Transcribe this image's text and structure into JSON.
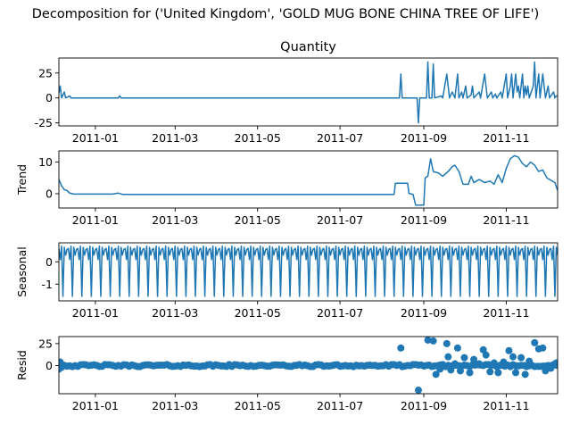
{
  "chart_data": {
    "type": "line",
    "title": "Decomposition for ('United Kingdom', 'GOLD MUG BONE CHINA TREE OF LIFE')",
    "x_tick_labels": [
      "2011-01",
      "2011-03",
      "2011-05",
      "2011-07",
      "2011-09",
      "2011-11"
    ],
    "x_tick_dates": [
      "2011-01-01",
      "2011-03-01",
      "2011-05-01",
      "2011-07-01",
      "2011-09-01",
      "2011-11-01"
    ],
    "x_range": [
      "2010-12-05",
      "2011-12-09"
    ],
    "line_color": "#1f77b4",
    "panels": [
      {
        "name": "Quantity",
        "title": "Quantity",
        "ylabel": "",
        "ylim": [
          -28,
          40
        ],
        "yticks": [
          -25,
          0,
          25
        ],
        "style": "line",
        "series": [
          {
            "x": "2010-12-05",
            "y": 5
          },
          {
            "x": "2010-12-06",
            "y": 12
          },
          {
            "x": "2010-12-07",
            "y": 0
          },
          {
            "x": "2010-12-09",
            "y": 6
          },
          {
            "x": "2010-12-10",
            "y": 0
          },
          {
            "x": "2010-12-13",
            "y": 2
          },
          {
            "x": "2010-12-14",
            "y": 0
          },
          {
            "x": "2011-01-18",
            "y": 0
          },
          {
            "x": "2011-01-19",
            "y": 2
          },
          {
            "x": "2011-01-20",
            "y": 0
          },
          {
            "x": "2011-08-14",
            "y": 0
          },
          {
            "x": "2011-08-15",
            "y": 24
          },
          {
            "x": "2011-08-16",
            "y": 0
          },
          {
            "x": "2011-08-27",
            "y": 0
          },
          {
            "x": "2011-08-28",
            "y": -25
          },
          {
            "x": "2011-08-29",
            "y": 0
          },
          {
            "x": "2011-09-03",
            "y": 0
          },
          {
            "x": "2011-09-04",
            "y": 36
          },
          {
            "x": "2011-09-05",
            "y": 0
          },
          {
            "x": "2011-09-07",
            "y": 0
          },
          {
            "x": "2011-09-08",
            "y": 34
          },
          {
            "x": "2011-09-09",
            "y": 0
          },
          {
            "x": "2011-09-14",
            "y": 2
          },
          {
            "x": "2011-09-15",
            "y": 0
          },
          {
            "x": "2011-09-18",
            "y": 24
          },
          {
            "x": "2011-09-19",
            "y": 12
          },
          {
            "x": "2011-09-20",
            "y": 0
          },
          {
            "x": "2011-09-22",
            "y": 6
          },
          {
            "x": "2011-09-24",
            "y": 0
          },
          {
            "x": "2011-09-26",
            "y": 24
          },
          {
            "x": "2011-09-27",
            "y": 0
          },
          {
            "x": "2011-09-29",
            "y": 6
          },
          {
            "x": "2011-09-30",
            "y": 0
          },
          {
            "x": "2011-10-02",
            "y": 12
          },
          {
            "x": "2011-10-03",
            "y": 0
          },
          {
            "x": "2011-10-06",
            "y": 3
          },
          {
            "x": "2011-10-07",
            "y": 12
          },
          {
            "x": "2011-10-08",
            "y": 0
          },
          {
            "x": "2011-10-12",
            "y": 6
          },
          {
            "x": "2011-10-13",
            "y": 0
          },
          {
            "x": "2011-10-16",
            "y": 24
          },
          {
            "x": "2011-10-17",
            "y": 12
          },
          {
            "x": "2011-10-18",
            "y": 0
          },
          {
            "x": "2011-10-21",
            "y": 6
          },
          {
            "x": "2011-10-22",
            "y": 0
          },
          {
            "x": "2011-10-24",
            "y": 4
          },
          {
            "x": "2011-10-25",
            "y": 0
          },
          {
            "x": "2011-10-28",
            "y": 6
          },
          {
            "x": "2011-10-29",
            "y": 0
          },
          {
            "x": "2011-11-01",
            "y": 24
          },
          {
            "x": "2011-11-02",
            "y": 0
          },
          {
            "x": "2011-11-04",
            "y": 12
          },
          {
            "x": "2011-11-05",
            "y": 24
          },
          {
            "x": "2011-11-06",
            "y": 0
          },
          {
            "x": "2011-11-08",
            "y": 24
          },
          {
            "x": "2011-11-09",
            "y": 6
          },
          {
            "x": "2011-11-10",
            "y": 12
          },
          {
            "x": "2011-11-11",
            "y": 0
          },
          {
            "x": "2011-11-13",
            "y": 24
          },
          {
            "x": "2011-11-14",
            "y": 0
          },
          {
            "x": "2011-11-15",
            "y": 12
          },
          {
            "x": "2011-11-16",
            "y": 3
          },
          {
            "x": "2011-11-17",
            "y": 12
          },
          {
            "x": "2011-11-18",
            "y": 0
          },
          {
            "x": "2011-11-21",
            "y": 12
          },
          {
            "x": "2011-11-22",
            "y": 36
          },
          {
            "x": "2011-11-23",
            "y": 0
          },
          {
            "x": "2011-11-25",
            "y": 24
          },
          {
            "x": "2011-11-26",
            "y": 0
          },
          {
            "x": "2011-11-28",
            "y": 24
          },
          {
            "x": "2011-11-29",
            "y": 12
          },
          {
            "x": "2011-11-30",
            "y": 0
          },
          {
            "x": "2011-12-02",
            "y": 12
          },
          {
            "x": "2011-12-03",
            "y": 0
          },
          {
            "x": "2011-12-06",
            "y": 6
          },
          {
            "x": "2011-12-07",
            "y": 0
          },
          {
            "x": "2011-12-08",
            "y": 2
          },
          {
            "x": "2011-12-09",
            "y": 2
          }
        ]
      },
      {
        "name": "Trend",
        "title": "",
        "ylabel": "Trend",
        "ylim": [
          -4.5,
          13.5
        ],
        "yticks": [
          0,
          10
        ],
        "style": "line",
        "series": [
          {
            "x": "2010-12-05",
            "y": 4.5
          },
          {
            "x": "2010-12-07",
            "y": 2.5
          },
          {
            "x": "2010-12-09",
            "y": 1.3
          },
          {
            "x": "2010-12-11",
            "y": 1.0
          },
          {
            "x": "2010-12-13",
            "y": 0.2
          },
          {
            "x": "2010-12-16",
            "y": -0.1
          },
          {
            "x": "2011-01-14",
            "y": -0.1
          },
          {
            "x": "2011-01-18",
            "y": 0.2
          },
          {
            "x": "2011-01-21",
            "y": -0.2
          },
          {
            "x": "2011-08-10",
            "y": -0.2
          },
          {
            "x": "2011-08-11",
            "y": 3.3
          },
          {
            "x": "2011-08-20",
            "y": 3.3
          },
          {
            "x": "2011-08-21",
            "y": 0.1
          },
          {
            "x": "2011-08-24",
            "y": -0.2
          },
          {
            "x": "2011-08-26",
            "y": -3.6
          },
          {
            "x": "2011-09-01",
            "y": -3.6
          },
          {
            "x": "2011-09-02",
            "y": 5.0
          },
          {
            "x": "2011-09-04",
            "y": 5.5
          },
          {
            "x": "2011-09-06",
            "y": 11.0
          },
          {
            "x": "2011-09-08",
            "y": 7.0
          },
          {
            "x": "2011-09-12",
            "y": 6.5
          },
          {
            "x": "2011-09-15",
            "y": 5.5
          },
          {
            "x": "2011-09-19",
            "y": 7.0
          },
          {
            "x": "2011-09-22",
            "y": 8.5
          },
          {
            "x": "2011-09-24",
            "y": 9.0
          },
          {
            "x": "2011-09-27",
            "y": 7.0
          },
          {
            "x": "2011-09-30",
            "y": 3.0
          },
          {
            "x": "2011-10-04",
            "y": 3.0
          },
          {
            "x": "2011-10-06",
            "y": 5.5
          },
          {
            "x": "2011-10-08",
            "y": 3.5
          },
          {
            "x": "2011-10-12",
            "y": 4.5
          },
          {
            "x": "2011-10-16",
            "y": 3.5
          },
          {
            "x": "2011-10-20",
            "y": 4.0
          },
          {
            "x": "2011-10-23",
            "y": 3.0
          },
          {
            "x": "2011-10-26",
            "y": 6.0
          },
          {
            "x": "2011-10-29",
            "y": 3.5
          },
          {
            "x": "2011-11-01",
            "y": 8.0
          },
          {
            "x": "2011-11-04",
            "y": 11.0
          },
          {
            "x": "2011-11-07",
            "y": 12.0
          },
          {
            "x": "2011-11-10",
            "y": 11.5
          },
          {
            "x": "2011-11-13",
            "y": 9.5
          },
          {
            "x": "2011-11-16",
            "y": 8.5
          },
          {
            "x": "2011-11-19",
            "y": 10.0
          },
          {
            "x": "2011-11-22",
            "y": 9.0
          },
          {
            "x": "2011-11-25",
            "y": 7.0
          },
          {
            "x": "2011-11-28",
            "y": 7.5
          },
          {
            "x": "2011-12-01",
            "y": 5.0
          },
          {
            "x": "2011-12-05",
            "y": 4.0
          },
          {
            "x": "2011-12-07",
            "y": 3.5
          },
          {
            "x": "2011-12-09",
            "y": 1.0
          }
        ]
      },
      {
        "name": "Seasonal",
        "title": "",
        "ylabel": "Seasonal",
        "ylim": [
          -1.75,
          0.85
        ],
        "yticks": [
          -1,
          0
        ],
        "style": "seasonal",
        "period_days": 7,
        "pattern": [
          0.6,
          0.1,
          0.7,
          -1.55,
          0.65,
          0.3,
          0.55
        ],
        "start": "2010-12-05"
      },
      {
        "name": "Resid",
        "title": "",
        "ylabel": "Resid",
        "ylim": [
          -32,
          33
        ],
        "yticks": [
          0,
          25
        ],
        "style": "scatter",
        "baseline": 0,
        "baseline_points_every_days": 2,
        "baseline_noise": 1.2,
        "series": [
          {
            "x": "2010-12-05",
            "y": -4
          },
          {
            "x": "2010-12-06",
            "y": 4
          },
          {
            "x": "2010-12-07",
            "y": -2
          },
          {
            "x": "2011-08-15",
            "y": 20
          },
          {
            "x": "2011-08-28",
            "y": -28
          },
          {
            "x": "2011-09-04",
            "y": 29
          },
          {
            "x": "2011-09-08",
            "y": 28
          },
          {
            "x": "2011-09-10",
            "y": -10
          },
          {
            "x": "2011-09-13",
            "y": -4
          },
          {
            "x": "2011-09-18",
            "y": 25
          },
          {
            "x": "2011-09-19",
            "y": 10
          },
          {
            "x": "2011-09-21",
            "y": -5
          },
          {
            "x": "2011-09-24",
            "y": 2
          },
          {
            "x": "2011-09-26",
            "y": 20
          },
          {
            "x": "2011-09-28",
            "y": -6
          },
          {
            "x": "2011-10-01",
            "y": 9
          },
          {
            "x": "2011-10-05",
            "y": -8
          },
          {
            "x": "2011-10-08",
            "y": 7
          },
          {
            "x": "2011-10-12",
            "y": 2
          },
          {
            "x": "2011-10-15",
            "y": 18
          },
          {
            "x": "2011-10-17",
            "y": 12
          },
          {
            "x": "2011-10-20",
            "y": -7
          },
          {
            "x": "2011-10-23",
            "y": 3
          },
          {
            "x": "2011-10-26",
            "y": -8
          },
          {
            "x": "2011-10-30",
            "y": 4
          },
          {
            "x": "2011-11-03",
            "y": 17
          },
          {
            "x": "2011-11-06",
            "y": 10
          },
          {
            "x": "2011-11-08",
            "y": -8
          },
          {
            "x": "2011-11-12",
            "y": 9
          },
          {
            "x": "2011-11-15",
            "y": -10
          },
          {
            "x": "2011-11-18",
            "y": 5
          },
          {
            "x": "2011-11-22",
            "y": 26
          },
          {
            "x": "2011-11-25",
            "y": 19
          },
          {
            "x": "2011-11-28",
            "y": 20
          },
          {
            "x": "2011-11-30",
            "y": -6
          },
          {
            "x": "2011-12-04",
            "y": -3
          },
          {
            "x": "2011-12-08",
            "y": 3
          }
        ]
      }
    ]
  }
}
